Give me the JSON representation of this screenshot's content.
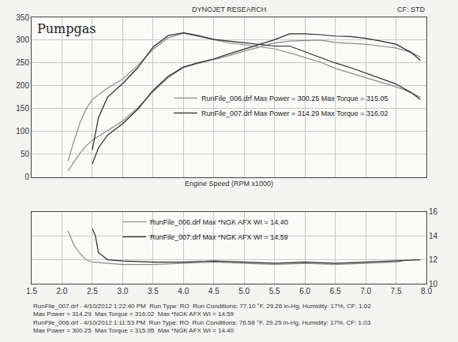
{
  "header": "DYNOJET RESEARCH",
  "corner": "CF: STD",
  "footer": [
    "RunFile_007.drf - 4/10/2012 1:22:40 PM  Run Type: RO  Run Conditions: 77.10 °F, 29.26 in-Hg, Humidity: 17%, CF: 1.02",
    "Max Power = 314.29  Max Torque = 316.02  Max *NGK AFX WI = 14.59",
    "RunFile_006.drf - 4/10/2012 1:11:53 PM  Run Type: RO  Run Conditions: 76.58 °F, 29.25 in-Hg, Humidity: 17%, CF: 1.03",
    "Max Power = 300.25  Max Torque = 315.05  Max *NGK AFX WI = 14.40"
  ],
  "chart_data": [
    {
      "type": "line",
      "title": "Pumpgas",
      "x_label": "Engine Speed (RPM x1000)",
      "xlim": [
        1.5,
        8.0
      ],
      "xticks": [
        1.5,
        {
          "value": 2,
          "label": "2.0"
        },
        2.5,
        {
          "value": 3,
          "label": "3.0"
        },
        3.5,
        {
          "value": 4,
          "label": "4.0"
        },
        4.5,
        {
          "value": 5,
          "label": "5.0"
        },
        5.5,
        {
          "value": 6,
          "label": "6.0"
        },
        6.5,
        {
          "value": 7,
          "label": "7.0"
        },
        7.5,
        {
          "value": 8,
          "label": "8.0"
        }
      ],
      "ylim": [
        0,
        350
      ],
      "yticks": [
        0,
        50,
        100,
        150,
        200,
        250,
        300,
        350
      ],
      "grid": true,
      "legend": "center",
      "tick_labels": "y",
      "series": [
        {
          "name": "RunFile_006.drf Max Power = 300.25 Max Torque = 315.05",
          "color": "#8c8c8c",
          "x": [
            2.1,
            2.2,
            2.3,
            2.4,
            2.5,
            2.75,
            3.0,
            3.25,
            3.5,
            3.75,
            4.0,
            4.25,
            4.5,
            4.75,
            5.0,
            5.25,
            5.5,
            5.75,
            6.0,
            6.25,
            6.5,
            6.75,
            7.0,
            7.25,
            7.5,
            7.75,
            7.9
          ],
          "torque": [
            35,
            80,
            120,
            150,
            170,
            195,
            215,
            245,
            280,
            305,
            315,
            308,
            300,
            294,
            290,
            285,
            281,
            272,
            262,
            252,
            238,
            228,
            218,
            208,
            198,
            185,
            175
          ],
          "power": [
            14,
            34,
            53,
            69,
            81,
            102,
            123,
            152,
            187,
            218,
            240,
            249,
            257,
            266,
            276,
            285,
            294,
            298,
            299,
            300,
            295,
            293,
            291,
            287,
            283,
            273,
            263
          ]
        },
        {
          "name": "RunFile_007.drf Max Power = 314.29 Max Torque = 316.02",
          "color": "#2b2b2b",
          "x": [
            2.5,
            2.6,
            2.75,
            3.0,
            3.25,
            3.5,
            3.75,
            4.0,
            4.25,
            4.5,
            4.75,
            5.0,
            5.25,
            5.5,
            5.75,
            6.0,
            6.25,
            6.5,
            6.75,
            7.0,
            7.25,
            7.5,
            7.75,
            7.9
          ],
          "torque": [
            60,
            130,
            175,
            205,
            240,
            285,
            310,
            316,
            310,
            302,
            298,
            294,
            290,
            287,
            287,
            275,
            262,
            250,
            240,
            228,
            216,
            204,
            185,
            170
          ],
          "power": [
            29,
            64,
            92,
            117,
            149,
            190,
            221,
            241,
            251,
            259,
            270,
            280,
            290,
            301,
            314,
            314,
            312,
            309,
            308,
            304,
            298,
            291,
            273,
            256
          ]
        }
      ]
    },
    {
      "type": "line",
      "xlim": [
        1.5,
        8.0
      ],
      "xticks": [
        1.5,
        {
          "value": 2,
          "label": "2.0"
        },
        2.5,
        {
          "value": 3,
          "label": "3.0"
        },
        3.5,
        {
          "value": 4,
          "label": "4.0"
        },
        4.5,
        {
          "value": 5,
          "label": "5.0"
        },
        5.5,
        {
          "value": 6,
          "label": "6.0"
        },
        6.5,
        {
          "value": 7,
          "label": "7.0"
        },
        7.5,
        {
          "value": 8,
          "label": "8.0"
        }
      ],
      "y2lim": [
        10,
        16
      ],
      "y2ticks": [
        10,
        12,
        14,
        16
      ],
      "grid": true,
      "legend": "upper left",
      "series": [
        {
          "name": "RunFile_006.drf Max *NGK AFX WI = 14.40",
          "color": "#8c8c8c",
          "axis": "y2",
          "x": [
            2.1,
            2.2,
            2.3,
            2.4,
            2.5,
            2.75,
            3.0,
            3.5,
            4.0,
            4.5,
            5.0,
            5.5,
            6.0,
            6.5,
            7.0,
            7.5,
            7.6
          ],
          "values": [
            14.4,
            13.2,
            12.5,
            12.0,
            11.8,
            11.7,
            11.6,
            11.6,
            11.7,
            11.8,
            11.7,
            11.6,
            11.7,
            11.6,
            11.7,
            11.8,
            11.9
          ]
        },
        {
          "name": "RunFile_007.drf Max *NGK AFX WI = 14.59",
          "color": "#2b2b2b",
          "axis": "y2",
          "x": [
            2.5,
            2.55,
            2.6,
            2.75,
            3.0,
            3.5,
            4.0,
            4.5,
            5.0,
            5.5,
            6.0,
            6.5,
            7.0,
            7.5,
            7.9
          ],
          "values": [
            14.59,
            14.0,
            12.6,
            12.0,
            11.9,
            11.8,
            11.8,
            11.9,
            11.8,
            11.7,
            11.8,
            11.7,
            11.8,
            11.9,
            12.0
          ]
        }
      ]
    }
  ]
}
